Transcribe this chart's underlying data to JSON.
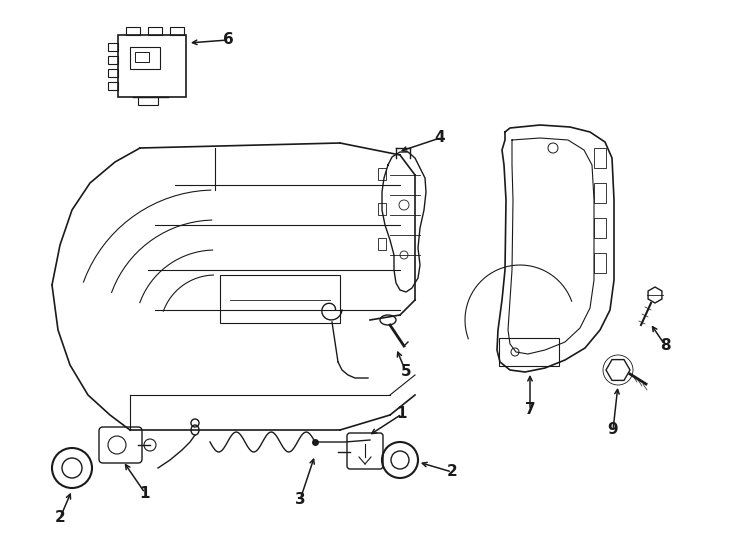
{
  "background_color": "#ffffff",
  "line_color": "#1a1a1a",
  "lw": 1.0,
  "fig_width": 7.34,
  "fig_height": 5.4
}
